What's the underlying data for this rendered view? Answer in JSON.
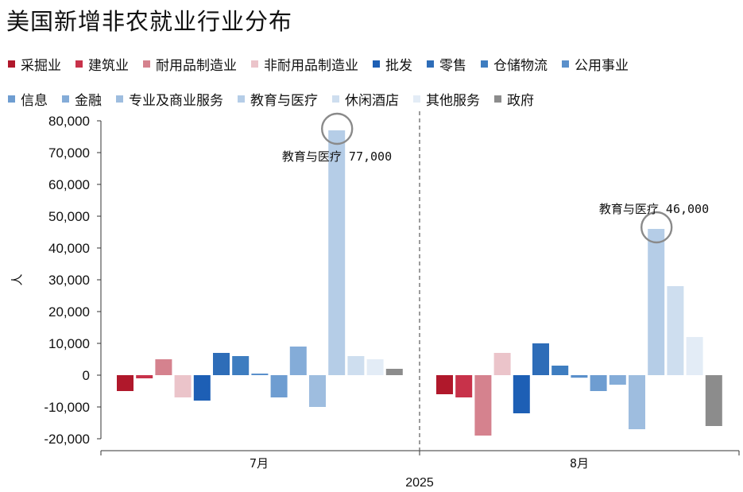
{
  "title": "美国新增非农就业行业分布",
  "chart_data": {
    "type": "bar",
    "title": "美国新增非农就业行业分布",
    "ylabel": "人",
    "xlabel": "2025",
    "ylim": [
      -20000,
      80000
    ],
    "yticks": [
      "-20,000",
      "-10,000",
      "0",
      "10,000",
      "20,000",
      "30,000",
      "40,000",
      "50,000",
      "60,000",
      "70,000",
      "80,000"
    ],
    "categories": [
      "7月",
      "8月"
    ],
    "series": [
      {
        "name": "采掘业",
        "color": "#b0182b",
        "values": [
          -5000,
          -6000
        ]
      },
      {
        "name": "建筑业",
        "color": "#c8324a",
        "values": [
          -1000,
          -7000
        ]
      },
      {
        "name": "耐用品制造业",
        "color": "#d5828e",
        "values": [
          5000,
          -19000
        ]
      },
      {
        "name": "非耐用品制造业",
        "color": "#ebc4ca",
        "values": [
          -7000,
          7000
        ]
      },
      {
        "name": "批发",
        "color": "#1d5fb5",
        "values": [
          -8000,
          -12000
        ]
      },
      {
        "name": "零售",
        "color": "#2e6db8",
        "values": [
          7000,
          10000
        ]
      },
      {
        "name": "仓储物流",
        "color": "#3e7dc0",
        "values": [
          6000,
          3000
        ]
      },
      {
        "name": "公用事业",
        "color": "#5a90cb",
        "values": [
          500,
          -800
        ]
      },
      {
        "name": "信息",
        "color": "#6e9dd1",
        "values": [
          -7000,
          -5000
        ]
      },
      {
        "name": "金融",
        "color": "#84acd8",
        "values": [
          9000,
          -3000
        ]
      },
      {
        "name": "专业及商业服务",
        "color": "#9ebddf",
        "values": [
          -10000,
          -17000
        ]
      },
      {
        "name": "教育与医疗",
        "color": "#b5cde7",
        "values": [
          77000,
          46000
        ]
      },
      {
        "name": "休闲酒店",
        "color": "#cedeef",
        "values": [
          6000,
          28000
        ]
      },
      {
        "name": "其他服务",
        "color": "#e3ecf6",
        "values": [
          5000,
          12000
        ]
      },
      {
        "name": "政府",
        "color": "#8c8c8c",
        "values": [
          2000,
          -16000
        ]
      }
    ],
    "annotations": [
      {
        "category": "7月",
        "series": "教育与医疗",
        "text": "教育与医疗 77,000"
      },
      {
        "category": "8月",
        "series": "教育与医疗",
        "text": "教育与医疗 46,000"
      }
    ]
  }
}
